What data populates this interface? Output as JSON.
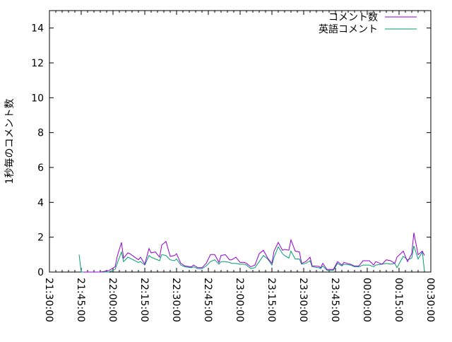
{
  "chart_data": {
    "type": "line",
    "title": "",
    "xlabel": "",
    "ylabel": "1秒毎のコメント数",
    "xlim": [
      "21:30:00",
      "00:30:00"
    ],
    "ylim": [
      0,
      15
    ],
    "x_ticks": [
      "21:30:00",
      "21:45:00",
      "22:00:00",
      "22:15:00",
      "22:30:00",
      "22:45:00",
      "23:00:00",
      "23:15:00",
      "23:30:00",
      "23:45:00",
      "00:00:00",
      "00:15:00",
      "00:30:00"
    ],
    "y_ticks": [
      "0",
      "2",
      "4",
      "6",
      "8",
      "10",
      "12",
      "14"
    ],
    "grid": false,
    "legend": "top-right",
    "series": [
      {
        "name": "コメント数",
        "color": "#9400d3",
        "x": [
          "21:46",
          "21:54",
          "21:58",
          "22:01",
          "22:02",
          "22:04",
          "22:05",
          "22:07",
          "22:08",
          "22:12",
          "22:13",
          "22:15",
          "22:17",
          "22:18",
          "22:20",
          "22:22",
          "22:23",
          "22:25",
          "22:27",
          "22:29",
          "22:30",
          "22:32",
          "22:34",
          "22:37",
          "22:38",
          "22:40",
          "22:42",
          "22:44",
          "22:46",
          "22:48",
          "22:50",
          "22:51",
          "22:53",
          "22:55",
          "22:56",
          "22:58",
          "23:00",
          "23:02",
          "23:03",
          "23:05",
          "23:07",
          "23:09",
          "23:11",
          "23:13",
          "23:15",
          "23:16",
          "23:18",
          "23:20",
          "23:21",
          "23:23",
          "23:24",
          "23:26",
          "23:28",
          "23:29",
          "23:31",
          "23:33",
          "23:34",
          "23:37",
          "23:38",
          "23:39",
          "23:41",
          "23:44",
          "23:46",
          "23:48",
          "23:49",
          "23:52",
          "23:54",
          "23:56",
          "23:58",
          "00:01",
          "00:03",
          "00:04",
          "00:07",
          "00:09",
          "00:11",
          "00:13",
          "00:14",
          "00:17",
          "00:19",
          "00:21",
          "00:22",
          "00:24",
          "00:26",
          "00:27"
        ],
        "values": [
          0,
          0,
          0.08,
          0.3,
          0.9,
          1.7,
          0.8,
          1.1,
          1.05,
          0.7,
          0.85,
          0.45,
          1.35,
          1.1,
          1.15,
          0.85,
          1.55,
          1.75,
          0.9,
          0.95,
          1.05,
          0.5,
          0.35,
          0.3,
          0.4,
          0.25,
          0.25,
          0.5,
          1.0,
          1.0,
          0.55,
          0.95,
          1.0,
          0.7,
          0.7,
          0.85,
          0.55,
          0.55,
          0.5,
          0.3,
          0.4,
          1.05,
          1.25,
          0.8,
          0.5,
          1.2,
          1.7,
          1.25,
          1.3,
          1.25,
          1.85,
          1.2,
          1.15,
          0.5,
          0.6,
          0.85,
          0.35,
          0.33,
          0.25,
          0.5,
          0.15,
          0.15,
          0.6,
          0.4,
          0.55,
          0.45,
          0.35,
          0.35,
          0.65,
          0.65,
          0.4,
          0.6,
          0.45,
          0.7,
          0.65,
          0.5,
          0.85,
          1.2,
          0.6,
          1.05,
          2.25,
          1.0,
          1.2,
          0.95
        ]
      },
      {
        "name": "英語コメント",
        "color": "#009e73",
        "x": [
          "21:44",
          "21:45",
          "21:54",
          "21:58",
          "22:01",
          "22:02",
          "22:04",
          "22:05",
          "22:07",
          "22:08",
          "22:12",
          "22:13",
          "22:15",
          "22:17",
          "22:18",
          "22:20",
          "22:22",
          "22:23",
          "22:25",
          "22:27",
          "22:29",
          "22:30",
          "22:32",
          "22:34",
          "22:37",
          "22:38",
          "22:40",
          "22:42",
          "22:44",
          "22:46",
          "22:48",
          "22:50",
          "22:51",
          "22:53",
          "22:55",
          "22:56",
          "22:58",
          "23:00",
          "23:02",
          "23:03",
          "23:05",
          "23:07",
          "23:09",
          "23:11",
          "23:13",
          "23:15",
          "23:16",
          "23:18",
          "23:20",
          "23:21",
          "23:23",
          "23:24",
          "23:26",
          "23:28",
          "23:29",
          "23:31",
          "23:33",
          "23:34",
          "23:37",
          "23:38",
          "23:39",
          "23:41",
          "23:44",
          "23:46",
          "23:48",
          "23:49",
          "23:52",
          "23:54",
          "23:56",
          "23:58",
          "00:01",
          "00:03",
          "00:04",
          "00:07",
          "00:09",
          "00:11",
          "00:13",
          "00:14",
          "00:17",
          "00:19",
          "00:21",
          "00:22",
          "00:24",
          "00:26",
          "00:27"
        ],
        "values": [
          1.0,
          0,
          0,
          0,
          0.15,
          0.5,
          1.15,
          0.6,
          0.85,
          0.8,
          0.55,
          0.6,
          0.4,
          0.95,
          0.85,
          0.75,
          0.65,
          1.0,
          0.95,
          0.7,
          0.65,
          0.75,
          0.4,
          0.3,
          0.25,
          0.3,
          0.2,
          0.2,
          0.35,
          0.6,
          0.7,
          0.45,
          0.6,
          0.6,
          0.55,
          0.5,
          0.5,
          0.45,
          0.45,
          0.4,
          0.2,
          0.25,
          0.6,
          0.95,
          0.75,
          0.4,
          0.85,
          1.45,
          1.05,
          0.95,
          0.8,
          1.2,
          0.75,
          0.75,
          0.45,
          0.5,
          0.65,
          0.3,
          0.25,
          0.2,
          0.35,
          0.1,
          0.1,
          0.5,
          0.35,
          0.45,
          0.4,
          0.3,
          0.3,
          0.4,
          0.4,
          0.3,
          0.4,
          0.45,
          0.5,
          0.45,
          0.5,
          0.25,
          0.9,
          0.7,
          0.8,
          1.5,
          0.75,
          1.15,
          0.05
        ]
      }
    ]
  }
}
